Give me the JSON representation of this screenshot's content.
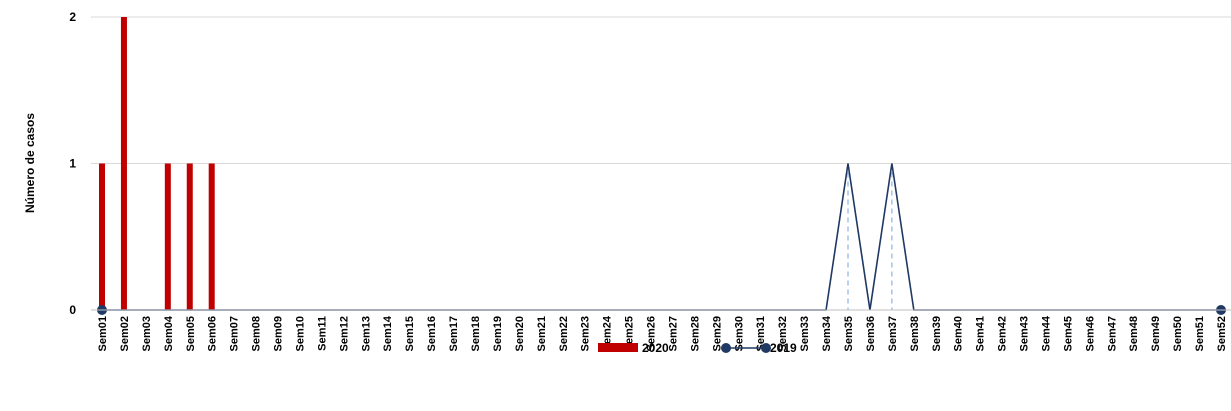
{
  "chart_data": {
    "type": "bar",
    "ylabel": "Número de casos",
    "xlabel": "",
    "title": "",
    "ylim": [
      0,
      2
    ],
    "yticks": [
      0,
      1,
      2
    ],
    "grid": true,
    "legend_placement": "bottom-center",
    "categories": [
      "Sem01",
      "Sem02",
      "Sem03",
      "Sem04",
      "Sem05",
      "Sem06",
      "Sem07",
      "Sem08",
      "Sem09",
      "Sem10",
      "Sem11",
      "Sem12",
      "Sem13",
      "Sem14",
      "Sem15",
      "Sem16",
      "Sem17",
      "Sem18",
      "Sem19",
      "Sem20",
      "Sem21",
      "Sem22",
      "Sem23",
      "Sem24",
      "Sem25",
      "Sem26",
      "Sem27",
      "Sem28",
      "Sem29",
      "Sem30",
      "Sem31",
      "Sem32",
      "Sem33",
      "Sem34",
      "Sem35",
      "Sem36",
      "Sem37",
      "Sem38",
      "Sem39",
      "Sem40",
      "Sem41",
      "Sem42",
      "Sem43",
      "Sem44",
      "Sem45",
      "Sem46",
      "Sem47",
      "Sem48",
      "Sem49",
      "Sem50",
      "Sem51",
      "Sem52"
    ],
    "series": [
      {
        "name": "2020",
        "type": "bar",
        "color": "#c00000",
        "values": [
          1,
          2,
          0,
          1,
          1,
          1,
          null,
          null,
          null,
          null,
          null,
          null,
          null,
          null,
          null,
          null,
          null,
          null,
          null,
          null,
          null,
          null,
          null,
          null,
          null,
          null,
          null,
          null,
          null,
          null,
          null,
          null,
          null,
          null,
          null,
          null,
          null,
          null,
          null,
          null,
          null,
          null,
          null,
          null,
          null,
          null,
          null,
          null,
          null,
          null,
          null,
          null
        ]
      },
      {
        "name": "2019",
        "type": "line",
        "color": "#1f3864",
        "values": [
          0,
          0,
          0,
          0,
          0,
          0,
          0,
          0,
          0,
          0,
          0,
          0,
          0,
          0,
          0,
          0,
          0,
          0,
          0,
          0,
          0,
          0,
          0,
          0,
          0,
          0,
          0,
          0,
          0,
          0,
          0,
          0,
          0,
          0,
          1,
          0,
          1,
          0,
          0,
          0,
          0,
          0,
          0,
          0,
          0,
          0,
          0,
          0,
          0,
          0,
          0,
          0
        ]
      }
    ]
  }
}
